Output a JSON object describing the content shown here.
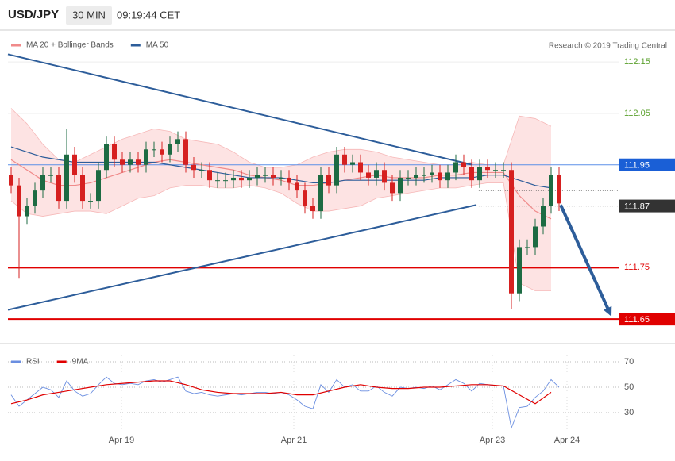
{
  "header": {
    "symbol": "USD/JPY",
    "interval": "30 MIN",
    "time": "09:19:44 CET",
    "credit": "Research © 2019 Trading Central"
  },
  "chart_data": [
    {
      "type": "candlestick",
      "up_color": "#1d6b43",
      "down_color": "#d62020",
      "xlim": [
        -0.4,
        76.6
      ],
      "ylim": [
        111.607,
        112.178
      ],
      "yticks": [
        112.15,
        112.05
      ],
      "ytick_color": "#5aa02c",
      "open": [
        111.93,
        111.91,
        111.85,
        111.87,
        111.9,
        111.93,
        111.93,
        111.88,
        111.97,
        111.93,
        111.88,
        111.88,
        111.94,
        111.99,
        111.96,
        111.95,
        111.96,
        111.95,
        111.98,
        111.98,
        111.97,
        111.99,
        112.0,
        111.95,
        111.94,
        111.94,
        111.92,
        111.92,
        111.92,
        111.925,
        111.92,
        111.925,
        111.93,
        111.93,
        111.925,
        111.925,
        111.915,
        111.9,
        111.87,
        111.86,
        111.93,
        111.91,
        111.97,
        111.95,
        111.955,
        111.935,
        111.925,
        111.94,
        111.915,
        111.895,
        111.925,
        111.925,
        111.93,
        111.93,
        111.935,
        111.92,
        111.935,
        111.955,
        111.945,
        111.92,
        111.945,
        111.94,
        111.94,
        111.94,
        111.7,
        111.79,
        111.79,
        111.83,
        111.87,
        111.93
      ],
      "high": [
        111.945,
        111.925,
        111.885,
        111.915,
        111.945,
        111.945,
        111.945,
        112.02,
        111.985,
        111.945,
        111.895,
        111.955,
        112.005,
        112.005,
        111.975,
        111.975,
        111.975,
        111.995,
        111.995,
        111.995,
        112.005,
        112.015,
        112.015,
        111.965,
        111.955,
        111.955,
        111.935,
        111.935,
        111.94,
        111.94,
        111.94,
        111.945,
        111.945,
        111.945,
        111.94,
        111.94,
        111.93,
        111.915,
        111.885,
        111.945,
        111.945,
        111.985,
        111.985,
        111.97,
        111.97,
        111.95,
        111.955,
        111.955,
        111.93,
        111.94,
        111.94,
        111.945,
        111.945,
        111.95,
        111.95,
        111.95,
        111.97,
        111.97,
        111.96,
        111.96,
        111.96,
        111.955,
        111.955,
        111.955,
        111.805,
        111.805,
        111.845,
        111.885,
        111.945,
        111.945
      ],
      "low": [
        111.895,
        111.73,
        111.835,
        111.855,
        111.885,
        111.915,
        111.865,
        111.865,
        111.915,
        111.865,
        111.865,
        111.865,
        111.925,
        111.945,
        111.935,
        111.935,
        111.935,
        111.935,
        111.965,
        111.955,
        111.955,
        111.975,
        111.935,
        111.925,
        111.925,
        111.905,
        111.905,
        111.905,
        111.905,
        111.905,
        111.905,
        111.91,
        111.915,
        111.91,
        111.91,
        111.9,
        111.885,
        111.855,
        111.845,
        111.845,
        111.895,
        111.895,
        111.935,
        111.935,
        111.92,
        111.91,
        111.91,
        111.9,
        111.88,
        111.88,
        111.91,
        111.91,
        111.915,
        111.915,
        111.905,
        111.905,
        111.92,
        111.93,
        111.905,
        111.905,
        111.925,
        111.925,
        111.925,
        111.67,
        111.685,
        111.775,
        111.775,
        111.815,
        111.855,
        111.86
      ],
      "close": [
        111.91,
        111.85,
        111.87,
        111.9,
        111.93,
        111.93,
        111.88,
        111.97,
        111.93,
        111.88,
        111.88,
        111.94,
        111.99,
        111.96,
        111.95,
        111.96,
        111.95,
        111.98,
        111.98,
        111.97,
        111.99,
        112.0,
        111.95,
        111.94,
        111.94,
        111.92,
        111.92,
        111.92,
        111.925,
        111.92,
        111.925,
        111.93,
        111.93,
        111.925,
        111.925,
        111.915,
        111.9,
        111.87,
        111.86,
        111.93,
        111.91,
        111.97,
        111.95,
        111.955,
        111.935,
        111.925,
        111.94,
        111.915,
        111.895,
        111.925,
        111.925,
        111.93,
        111.93,
        111.935,
        111.92,
        111.935,
        111.955,
        111.945,
        111.92,
        111.945,
        111.94,
        111.94,
        111.94,
        111.7,
        111.79,
        111.79,
        111.83,
        111.87,
        111.93,
        111.875
      ],
      "line_x": [
        0,
        2,
        4,
        6,
        8,
        10,
        12,
        14,
        16,
        18,
        20,
        22,
        24,
        26,
        28,
        30,
        32,
        34,
        36,
        38,
        40,
        42,
        44,
        46,
        48,
        50,
        52,
        54,
        56,
        58,
        60,
        62,
        64,
        66,
        68
      ],
      "series": [
        {
          "name": "MA 20 + Bollinger Bands",
          "color": "#f08a8a",
          "band_color": "#fde3e3",
          "values": [
            111.96,
            111.94,
            111.92,
            111.91,
            111.91,
            111.915,
            111.925,
            111.935,
            111.945,
            111.955,
            111.96,
            111.955,
            111.95,
            111.945,
            111.94,
            111.93,
            111.925,
            111.92,
            111.91,
            111.91,
            111.915,
            111.92,
            111.925,
            111.93,
            111.925,
            111.925,
            111.925,
            111.93,
            111.93,
            111.935,
            111.935,
            111.935,
            111.89,
            111.86,
            111.845
          ],
          "upper": [
            112.06,
            112.03,
            111.99,
            111.96,
            111.955,
            111.97,
            111.985,
            112.0,
            112.01,
            112.02,
            112.015,
            112.0,
            111.995,
            111.99,
            111.975,
            111.955,
            111.945,
            111.945,
            111.95,
            111.965,
            111.975,
            111.98,
            111.98,
            111.975,
            111.965,
            111.96,
            111.955,
            111.95,
            111.95,
            111.955,
            111.95,
            111.95,
            112.045,
            112.04,
            112.025
          ],
          "lower": [
            111.88,
            111.855,
            111.85,
            111.855,
            111.86,
            111.86,
            111.855,
            111.87,
            111.885,
            111.89,
            111.905,
            111.91,
            111.91,
            111.905,
            111.905,
            111.91,
            111.905,
            111.895,
            111.875,
            111.86,
            111.86,
            111.865,
            111.87,
            111.885,
            111.89,
            111.895,
            111.9,
            111.905,
            111.905,
            111.91,
            111.915,
            111.915,
            111.72,
            111.705,
            111.705
          ]
        },
        {
          "name": "MA 50",
          "color": "#2d5d9a",
          "values": [
            111.985,
            111.975,
            111.965,
            111.96,
            111.955,
            111.955,
            111.955,
            111.955,
            111.955,
            111.955,
            111.95,
            111.945,
            111.94,
            111.935,
            111.93,
            111.925,
            111.925,
            111.925,
            111.92,
            111.915,
            111.915,
            111.92,
            111.92,
            111.92,
            111.92,
            111.92,
            111.92,
            111.925,
            111.925,
            111.925,
            111.93,
            111.93,
            111.92,
            111.91,
            111.905
          ]
        }
      ],
      "trendlines": [
        {
          "color": "#2d5d9a",
          "x": [
            -0.4,
            58.1
          ],
          "values": [
            112.165,
            111.95
          ]
        },
        {
          "color": "#2d5d9a",
          "x": [
            -0.4,
            58.6
          ],
          "values": [
            111.668,
            111.872
          ]
        }
      ],
      "arrow": {
        "color": "#2d5d9a",
        "x": [
          69.2,
          75.6
        ],
        "values": [
          111.872,
          111.655
        ]
      },
      "levels": [
        {
          "value": 111.95,
          "color": "#1a5fd6",
          "line": "solid",
          "label_style": "box"
        },
        {
          "value": 111.9,
          "color": "#555555",
          "line": "dotted",
          "label_style": "none"
        },
        {
          "value": 111.87,
          "color": "#333333",
          "line": "dotted",
          "label_style": "box"
        },
        {
          "value": 111.75,
          "color": "#e00000",
          "line": "thick",
          "label_style": "text"
        },
        {
          "value": 111.65,
          "color": "#e00000",
          "line": "thick",
          "label_style": "box"
        }
      ]
    },
    {
      "type": "line",
      "xlim": [
        -0.4,
        76.6
      ],
      "ylim": [
        14.4,
        80
      ],
      "yticks": [
        30,
        50,
        70
      ],
      "xticks": [
        {
          "value": 13.9,
          "label": "Apr 19"
        },
        {
          "value": 35.6,
          "label": "Apr 21"
        },
        {
          "value": 60.6,
          "label": "Apr 23"
        },
        {
          "value": 70,
          "label": "Apr 24"
        }
      ],
      "series": [
        {
          "name": "RSI",
          "color": "#6a8ee0",
          "values": [
            44,
            35,
            40,
            45,
            50,
            48,
            42,
            55,
            47,
            43,
            45,
            52,
            58,
            53,
            52,
            53,
            52,
            55,
            56,
            54,
            56,
            58,
            47,
            45,
            46,
            44,
            43,
            44,
            45,
            44,
            45,
            46,
            46,
            45,
            46,
            44,
            40,
            35,
            33,
            52,
            46,
            56,
            50,
            52,
            47,
            47,
            51,
            46,
            43,
            50,
            49,
            50,
            49,
            51,
            48,
            52,
            56,
            53,
            47,
            53,
            52,
            51,
            51,
            18,
            34,
            35,
            42,
            47,
            56,
            50
          ]
        },
        {
          "name": "9MA",
          "color": "#e00000",
          "x": [
            0,
            2,
            4,
            6,
            8,
            10,
            12,
            14,
            16,
            18,
            20,
            22,
            24,
            26,
            28,
            30,
            32,
            34,
            36,
            38,
            40,
            42,
            44,
            46,
            48,
            50,
            52,
            54,
            56,
            58,
            60,
            62,
            64,
            66,
            68
          ],
          "values": [
            37,
            40,
            44,
            46,
            48,
            50,
            52,
            53,
            54,
            55,
            55,
            52,
            48,
            46,
            45,
            45,
            45,
            46,
            44,
            44,
            47,
            50,
            52,
            50,
            49,
            49,
            50,
            50,
            51,
            52,
            52,
            51,
            44,
            37,
            46
          ]
        }
      ]
    }
  ]
}
